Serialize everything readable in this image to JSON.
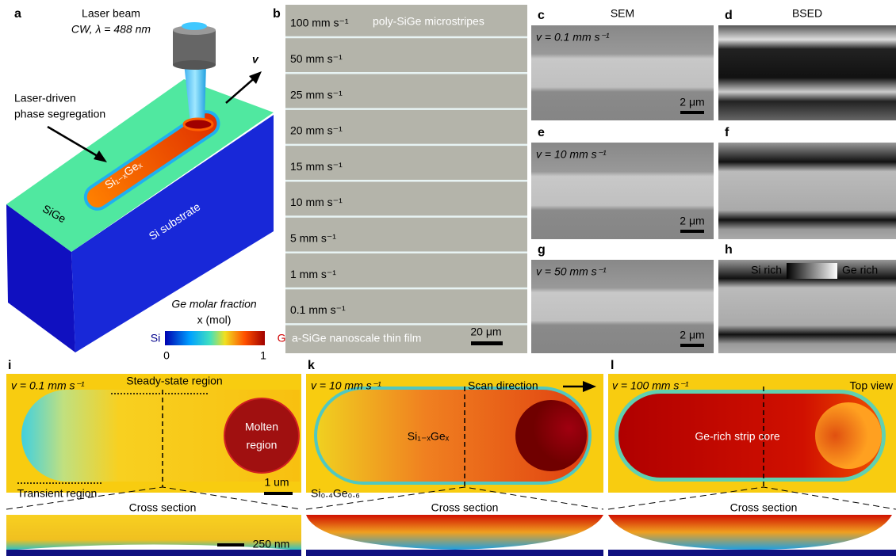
{
  "panels": {
    "a": {
      "label": "a",
      "beam": "Laser beam",
      "beam_params": "CW, λ = 488 nm",
      "velocity": "v",
      "process": [
        "Laser-driven",
        "phase segregation"
      ],
      "alloy": "Si₁₋ₓGeₓ",
      "film": "SiGe",
      "substrate": "Si substrate",
      "colorbar": {
        "title": "Ge molar fraction",
        "unit": "x (mol)",
        "left": "Si",
        "right": "Ge",
        "ticks": [
          0,
          1
        ]
      }
    },
    "b": {
      "label": "b",
      "title": "poly-SiGe microstripes",
      "speeds": [
        "100 mm s⁻¹",
        "50 mm s⁻¹",
        "25 mm s⁻¹",
        "20 mm s⁻¹",
        "15 mm s⁻¹",
        "10 mm s⁻¹",
        "5 mm s⁻¹",
        "1 mm s⁻¹",
        "0.1 mm s⁻¹"
      ],
      "film": "a-SiGe nanoscale thin film",
      "scale": "20 μm"
    },
    "sem": {
      "header": "SEM",
      "panels": [
        {
          "label": "c",
          "speed": "v = 0.1 mm s⁻¹",
          "scale": "2 μm"
        },
        {
          "label": "e",
          "speed": "v = 10 mm s⁻¹",
          "scale": "2 μm"
        },
        {
          "label": "g",
          "speed": "v = 50 mm s⁻¹",
          "scale": "2 μm"
        }
      ]
    },
    "bsed": {
      "header": "BSED",
      "panels": [
        {
          "label": "d"
        },
        {
          "label": "f"
        },
        {
          "label": "h"
        }
      ],
      "legend_left": "Si rich",
      "legend_right": "Ge rich"
    },
    "i": {
      "label": "i",
      "speed": "v = 0.1 mm s⁻¹",
      "steady": "Steady-state region",
      "molten": [
        "Molten",
        "region"
      ],
      "transient": "Transient region",
      "scale": "1 um",
      "cross": "Cross section",
      "cross_scale": "250 nm"
    },
    "k": {
      "label": "k",
      "speed": "v = 10 mm s⁻¹",
      "direction": "Scan direction",
      "alloy": "Si₁₋ₓGeₓ",
      "film": "Si₀.₄Ge₀.₆",
      "cross": "Cross section"
    },
    "l": {
      "label": "l",
      "speed": "v = 100 mm s⁻¹",
      "view": "Top view",
      "core": "Ge-rich strip core",
      "cross": "Cross section"
    }
  }
}
